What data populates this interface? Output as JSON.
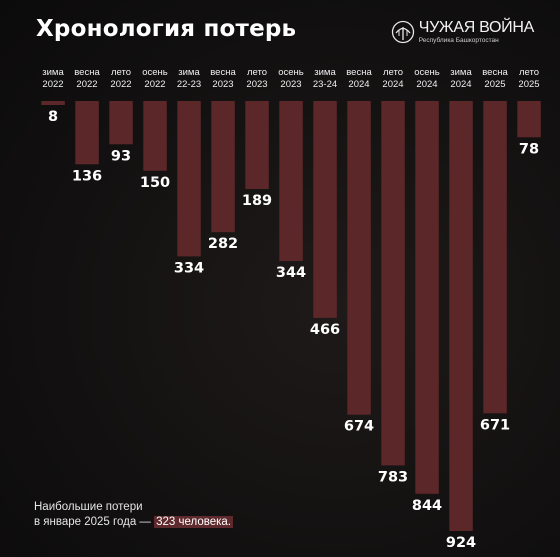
{
  "header": {
    "title": "Хронология потерь",
    "brand_name": "ЧУЖАЯ ВОЙНА",
    "brand_sub": "Республика Башкортостан"
  },
  "colors": {
    "bar": "#5c2729",
    "background": "#141212",
    "text": "#ffffff"
  },
  "chart_data": {
    "type": "bar",
    "orientation": "downward",
    "categories": [
      [
        "зима",
        "2022"
      ],
      [
        "весна",
        "2022"
      ],
      [
        "лето",
        "2022"
      ],
      [
        "осень",
        "2022"
      ],
      [
        "зима",
        "22-23"
      ],
      [
        "весна",
        "2023"
      ],
      [
        "лето",
        "2023"
      ],
      [
        "осень",
        "2023"
      ],
      [
        "зима",
        "23-24"
      ],
      [
        "весна",
        "2024"
      ],
      [
        "лето",
        "2024"
      ],
      [
        "осень",
        "2024"
      ],
      [
        "зима",
        "2024"
      ],
      [
        "весна",
        "2025"
      ],
      [
        "лето",
        "2025"
      ]
    ],
    "values": [
      8,
      136,
      93,
      150,
      334,
      282,
      189,
      344,
      466,
      674,
      783,
      844,
      924,
      671,
      78
    ],
    "title": "Хронология потерь",
    "xlabel": "",
    "ylabel": "",
    "ylim": [
      0,
      924
    ]
  },
  "note": {
    "line1": "Наибольшие потери",
    "line2": "в январе 2025 года — ",
    "highlight": "323 человека."
  }
}
